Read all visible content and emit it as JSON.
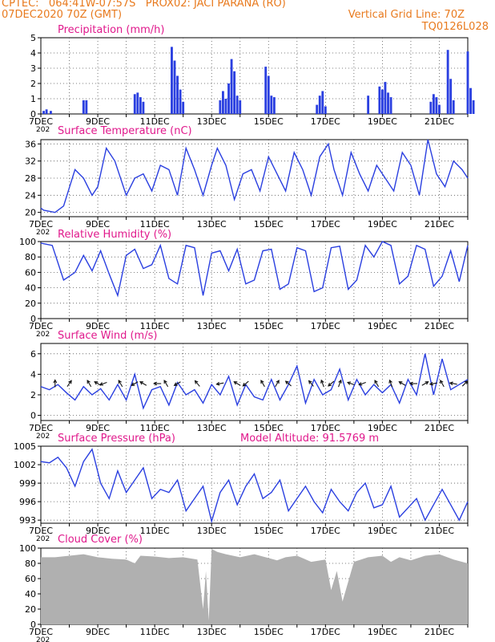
{
  "header": {
    "line1": "CPTEC:   064:41W-07:57S   PROX02: JACI PARANA (RO)",
    "line2_left": "07DEC2020 70Z (GMT)",
    "line2_right": "Vertical Grid Line: 70Z",
    "line3_right": "TQ0126L028",
    "color": "#e87a1e"
  },
  "x_tick_labels": [
    "7DEC",
    "9DEC",
    "11DEC",
    "13DEC",
    "15DEC",
    "17DEC",
    "19DEC",
    "21DEC"
  ],
  "x_tick_days": [
    0,
    2,
    4,
    6,
    8,
    10,
    12,
    14
  ],
  "x_range_days": [
    0,
    15
  ],
  "stub_label": "202",
  "colors": {
    "title": "#e0198c",
    "line": "#2a3fe0",
    "bar": "#2a3fe0",
    "cloud": "#b0b0b0",
    "arrow": "#111111"
  },
  "chart_data": [
    {
      "type": "bar",
      "title": "Precipitation (mm/h)",
      "ylim": [
        0,
        5
      ],
      "yticks": [
        "0",
        "1",
        "2",
        "3",
        "4",
        "5"
      ],
      "series": [
        {
          "values": [
            [
              0.1,
              0.2
            ],
            [
              0.2,
              0.3
            ],
            [
              0.35,
              0.2
            ],
            [
              1.5,
              0.9
            ],
            [
              1.6,
              0.9
            ],
            [
              3.3,
              1.3
            ],
            [
              3.4,
              1.4
            ],
            [
              3.5,
              1.1
            ],
            [
              3.6,
              0.8
            ],
            [
              4.6,
              4.4
            ],
            [
              4.7,
              3.5
            ],
            [
              4.8,
              2.5
            ],
            [
              4.9,
              1.6
            ],
            [
              5.0,
              0.8
            ],
            [
              6.3,
              0.9
            ],
            [
              6.4,
              1.5
            ],
            [
              6.5,
              1.0
            ],
            [
              6.6,
              2.0
            ],
            [
              6.7,
              3.6
            ],
            [
              6.8,
              2.8
            ],
            [
              6.9,
              1.2
            ],
            [
              7.0,
              0.9
            ],
            [
              7.9,
              3.1
            ],
            [
              8.0,
              2.5
            ],
            [
              8.1,
              1.2
            ],
            [
              8.2,
              1.1
            ],
            [
              9.7,
              0.6
            ],
            [
              9.8,
              1.2
            ],
            [
              9.9,
              1.5
            ],
            [
              10.0,
              0.5
            ],
            [
              11.5,
              1.2
            ],
            [
              11.9,
              1.8
            ],
            [
              12.0,
              1.6
            ],
            [
              12.1,
              2.1
            ],
            [
              12.2,
              1.4
            ],
            [
              12.3,
              1.1
            ],
            [
              13.7,
              0.8
            ],
            [
              13.8,
              1.3
            ],
            [
              13.9,
              1.1
            ],
            [
              14.0,
              0.6
            ],
            [
              14.3,
              4.2
            ],
            [
              14.4,
              2.3
            ],
            [
              14.5,
              0.9
            ],
            [
              15.0,
              4.1
            ],
            [
              15.1,
              1.7
            ],
            [
              15.2,
              0.9
            ]
          ]
        }
      ]
    },
    {
      "type": "line",
      "title": "Surface Temperature (nC)",
      "ylim": [
        19,
        37
      ],
      "yticks": [
        "20",
        "24",
        "28",
        "32",
        "36"
      ],
      "series": [
        {
          "x": [
            0,
            0.1,
            0.5,
            0.8,
            1.2,
            1.5,
            1.8,
            2.0,
            2.3,
            2.6,
            3.0,
            3.3,
            3.6,
            3.9,
            4.2,
            4.5,
            4.8,
            5.1,
            5.4,
            5.7,
            6.0,
            6.2,
            6.5,
            6.8,
            7.1,
            7.4,
            7.7,
            8.0,
            8.3,
            8.6,
            8.9,
            9.2,
            9.5,
            9.8,
            10.1,
            10.3,
            10.6,
            10.9,
            11.2,
            11.5,
            11.8,
            12.1,
            12.4,
            12.7,
            13.0,
            13.3,
            13.6,
            13.9,
            14.2,
            14.5,
            14.8,
            15.0
          ],
          "y": [
            21,
            20.5,
            20,
            21.5,
            30,
            28,
            24,
            26,
            35,
            32,
            24,
            28,
            29,
            25,
            31,
            30,
            24,
            35,
            30,
            24,
            31,
            35,
            31,
            23,
            29,
            30,
            25,
            33,
            29,
            25,
            34,
            30,
            24,
            33,
            36,
            30,
            24,
            34,
            29,
            25,
            31,
            28,
            25,
            34,
            31,
            24,
            37,
            29,
            26,
            32,
            30,
            28
          ]
        }
      ]
    },
    {
      "type": "line",
      "title": "Relative Humidity (%)",
      "ylim": [
        0,
        100
      ],
      "yticks": [
        "0",
        "20",
        "40",
        "60",
        "80",
        "100"
      ],
      "series": [
        {
          "x": [
            0,
            0.4,
            0.8,
            1.2,
            1.5,
            1.8,
            2.1,
            2.4,
            2.7,
            3.0,
            3.3,
            3.6,
            3.9,
            4.2,
            4.5,
            4.8,
            5.1,
            5.4,
            5.7,
            6.0,
            6.3,
            6.6,
            6.9,
            7.2,
            7.5,
            7.8,
            8.1,
            8.4,
            8.7,
            9.0,
            9.3,
            9.6,
            9.9,
            10.2,
            10.5,
            10.8,
            11.1,
            11.4,
            11.7,
            12.0,
            12.3,
            12.6,
            12.9,
            13.2,
            13.5,
            13.8,
            14.1,
            14.4,
            14.7,
            15.0
          ],
          "y": [
            98,
            95,
            50,
            60,
            82,
            62,
            88,
            58,
            30,
            82,
            90,
            65,
            70,
            95,
            52,
            45,
            95,
            92,
            30,
            85,
            88,
            62,
            90,
            45,
            50,
            88,
            90,
            38,
            45,
            92,
            88,
            35,
            40,
            92,
            94,
            38,
            50,
            95,
            80,
            100,
            95,
            45,
            55,
            95,
            90,
            42,
            55,
            88,
            48,
            95
          ]
        }
      ]
    },
    {
      "type": "line",
      "title": "Surface Wind (m/s)",
      "ylim": [
        -0.5,
        7
      ],
      "yticks": [
        "0",
        "2",
        "4",
        "6"
      ],
      "series": [
        {
          "x": [
            0,
            0.3,
            0.6,
            0.9,
            1.2,
            1.5,
            1.8,
            2.1,
            2.4,
            2.7,
            3.0,
            3.3,
            3.6,
            3.9,
            4.2,
            4.5,
            4.8,
            5.1,
            5.4,
            5.7,
            6.0,
            6.3,
            6.6,
            6.9,
            7.2,
            7.5,
            7.8,
            8.1,
            8.4,
            8.7,
            9.0,
            9.3,
            9.6,
            9.9,
            10.2,
            10.5,
            10.8,
            11.1,
            11.4,
            11.7,
            12.0,
            12.3,
            12.6,
            12.9,
            13.2,
            13.5,
            13.8,
            14.1,
            14.4,
            14.7,
            15.0
          ],
          "y": [
            2.8,
            2.5,
            3.0,
            2.2,
            1.5,
            2.8,
            2.0,
            2.6,
            1.5,
            3.0,
            1.5,
            4.0,
            0.7,
            2.5,
            2.8,
            1.0,
            3.2,
            2.0,
            2.5,
            1.2,
            3.0,
            2.0,
            3.8,
            1.0,
            3.0,
            1.8,
            1.5,
            3.5,
            1.5,
            3.0,
            4.8,
            1.2,
            3.5,
            2.0,
            2.5,
            4.5,
            1.5,
            3.5,
            2.0,
            3.0,
            2.2,
            3.0,
            1.2,
            3.5,
            2.0,
            6.0,
            2.0,
            5.5,
            2.5,
            3.0,
            3.5
          ]
        }
      ],
      "arrows": [
        [
          0.5,
          0
        ],
        [
          1.0,
          35
        ],
        [
          1.7,
          -30
        ],
        [
          2.0,
          -60
        ],
        [
          2.2,
          -110
        ],
        [
          2.8,
          -30
        ],
        [
          3.3,
          -120
        ],
        [
          3.6,
          -60
        ],
        [
          4.1,
          -90
        ],
        [
          4.4,
          -30
        ],
        [
          4.8,
          -120
        ],
        [
          5.5,
          -40
        ],
        [
          6.3,
          -100
        ],
        [
          6.9,
          -60
        ],
        [
          7.2,
          -130
        ],
        [
          7.8,
          -30
        ],
        [
          8.3,
          30
        ],
        [
          8.7,
          -50
        ],
        [
          9.5,
          -40
        ],
        [
          9.9,
          -20
        ],
        [
          10.2,
          -130
        ],
        [
          10.5,
          20
        ],
        [
          10.9,
          -70
        ],
        [
          11.3,
          -110
        ],
        [
          11.8,
          -30
        ],
        [
          12.3,
          -20
        ],
        [
          12.7,
          -60
        ],
        [
          13.1,
          -90
        ],
        [
          13.5,
          60
        ],
        [
          13.8,
          -100
        ],
        [
          14.1,
          -30
        ],
        [
          14.5,
          -80
        ],
        [
          14.9,
          45
        ]
      ]
    },
    {
      "type": "line",
      "title": "Surface Pressure (hPa)",
      "annotation": "Model Altitude: 91.5769 m",
      "ylim": [
        992.5,
        1005
      ],
      "yticks": [
        "993",
        "996",
        "999",
        "1002",
        "1005"
      ],
      "series": [
        {
          "x": [
            0,
            0.3,
            0.6,
            0.9,
            1.2,
            1.5,
            1.8,
            2.1,
            2.4,
            2.7,
            3.0,
            3.3,
            3.6,
            3.9,
            4.2,
            4.5,
            4.8,
            5.1,
            5.4,
            5.7,
            6.0,
            6.3,
            6.6,
            6.9,
            7.2,
            7.5,
            7.8,
            8.1,
            8.4,
            8.7,
            9.0,
            9.3,
            9.6,
            9.9,
            10.2,
            10.5,
            10.8,
            11.1,
            11.4,
            11.7,
            12.0,
            12.3,
            12.6,
            12.9,
            13.2,
            13.5,
            13.8,
            14.1,
            14.4,
            14.7,
            15.0
          ],
          "y": [
            1002.5,
            1002.3,
            1003.2,
            1001.5,
            998.5,
            1002.5,
            1004.5,
            999,
            996.5,
            1001,
            997.5,
            999.5,
            1001.5,
            996.5,
            998,
            997.5,
            999.5,
            994.5,
            996.5,
            998.5,
            992.8,
            997.5,
            999.5,
            995.5,
            998.5,
            1000.5,
            996.5,
            997.5,
            999.5,
            994.5,
            996.5,
            998.5,
            996,
            994.2,
            998,
            996,
            994.5,
            997.5,
            999,
            995,
            995.5,
            998.5,
            993.5,
            995,
            996.5,
            993,
            995.5,
            998,
            995.5,
            993,
            996
          ]
        }
      ]
    },
    {
      "type": "area",
      "title": "Cloud Cover (%)",
      "ylim": [
        0,
        100
      ],
      "yticks": [
        "0",
        "20",
        "40",
        "60",
        "80",
        "100"
      ],
      "series": [
        {
          "x": [
            0,
            0.5,
            1.0,
            1.5,
            2.0,
            2.5,
            3.0,
            3.3,
            3.5,
            4.0,
            4.5,
            5.0,
            5.5,
            5.7,
            5.8,
            5.9,
            6.0,
            6.2,
            6.5,
            7.0,
            7.5,
            8.0,
            8.3,
            8.6,
            9.0,
            9.5,
            10.0,
            10.2,
            10.4,
            10.6,
            11.0,
            11.5,
            12.0,
            12.3,
            12.6,
            13.0,
            13.5,
            14.0,
            14.5,
            15.0
          ],
          "y": [
            88,
            88,
            90,
            92,
            88,
            86,
            85,
            80,
            90,
            89,
            87,
            88,
            85,
            20,
            70,
            5,
            99,
            95,
            92,
            88,
            92,
            87,
            84,
            88,
            90,
            82,
            85,
            45,
            70,
            30,
            82,
            88,
            90,
            82,
            88,
            84,
            90,
            92,
            85,
            80
          ]
        }
      ]
    }
  ]
}
